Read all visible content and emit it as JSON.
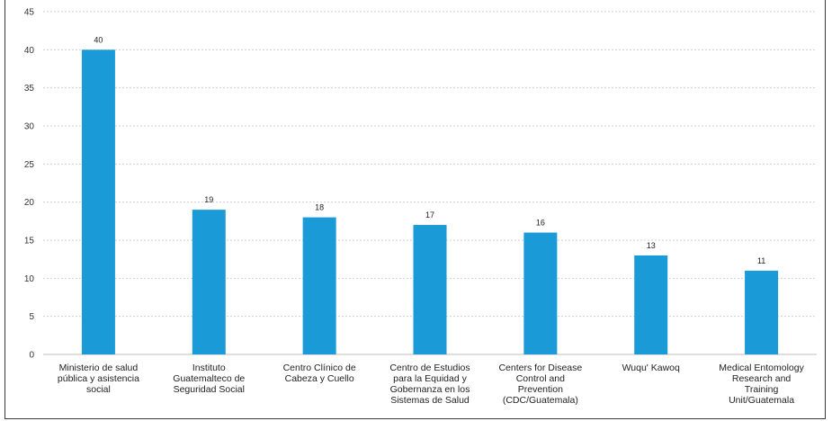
{
  "chart_data": {
    "type": "bar",
    "title": "",
    "xlabel": "",
    "ylabel": "",
    "ylim": [
      0,
      45
    ],
    "yticks": [
      0,
      5,
      10,
      15,
      20,
      25,
      30,
      35,
      40,
      45
    ],
    "grid": true,
    "bar_color": "#1a9ad6",
    "categories": [
      [
        "Ministerio de salud",
        "pública y asistencia",
        "social"
      ],
      [
        "Instituto",
        "Guatemalteco de",
        "Seguridad Social"
      ],
      [
        "Centro Clínico de",
        "Cabeza y Cuello"
      ],
      [
        "Centro de Estudios",
        "para la Equidad y",
        "Gobernanza en los",
        "Sistemas de Salud"
      ],
      [
        "Centers for Disease",
        "Control and",
        "Prevention",
        "(CDC/Guatemala)"
      ],
      [
        "Wuqu' Kawoq"
      ],
      [
        "Medical Entomology",
        "Research and",
        "Training",
        "Unit/Guatemala"
      ]
    ],
    "values": [
      40,
      19,
      18,
      17,
      16,
      13,
      11
    ],
    "data_labels": [
      "40",
      "19",
      "18",
      "17",
      "16",
      "13",
      "11"
    ]
  }
}
